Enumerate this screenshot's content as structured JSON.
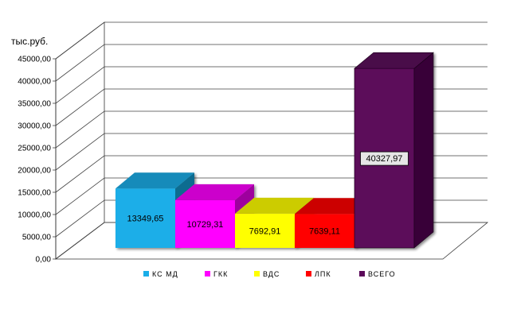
{
  "chart_data": {
    "type": "bar",
    "title": "",
    "ylabel": "тыс.руб.",
    "xlabel": "",
    "ylim": [
      0,
      45000
    ],
    "ytick_step": 5000,
    "ytick_labels": [
      "0,00",
      "5000,00",
      "10000,00",
      "15000,00",
      "20000,00",
      "25000,00",
      "30000,00",
      "35000,00",
      "40000,00",
      "45000,00"
    ],
    "grid": true,
    "legend_position": "bottom",
    "three_d": true,
    "categories": [
      "КС МД",
      "ГКК",
      "ВДС",
      "ЛПК",
      "ВСЕГО"
    ],
    "values": [
      13349.65,
      10729.31,
      7692.91,
      7639.11,
      40327.97
    ],
    "value_labels": [
      "13349,65",
      "10729,31",
      "7692,91",
      "7639,11",
      "40327,97"
    ],
    "colors": [
      "#1aaee8",
      "#ff00ff",
      "#ffff00",
      "#ff0000",
      "#5c0a5a"
    ],
    "total_label_background": "#e6e6e6"
  }
}
